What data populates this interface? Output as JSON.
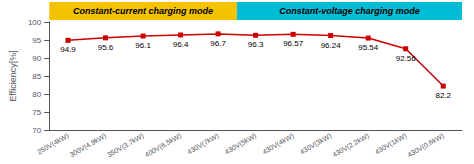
{
  "chart_data": {
    "type": "line",
    "categories": [
      "250V(4kW)",
      "300V(4.9kW)",
      "350V(3.7kW)",
      "400V(6.5kW)",
      "430V(7kW)",
      "430V(5kW)",
      "430V(4kW)",
      "430V(3kW)",
      "430V(2.2kW)",
      "430V(1kW)",
      "430V(0.6kW)"
    ],
    "values": [
      94.9,
      95.6,
      96.1,
      96.4,
      96.7,
      96.3,
      96.57,
      96.24,
      95.54,
      92.56,
      82.2
    ],
    "color": "#cc0000",
    "marker": "square",
    "ylabel": "Efficiency[%]",
    "ylim": [
      70,
      100
    ],
    "yticks": [
      70,
      75,
      80,
      85,
      90,
      95,
      100
    ],
    "data_labels": true,
    "grid": false,
    "annotations": [
      {
        "text": "Constant-current charging mode",
        "color": "#f5c200",
        "from": "250V(4kW)",
        "to": "430V(7kW)"
      },
      {
        "text": "Constant-voltage charging mode",
        "color": "#00bcd4",
        "from": "430V(5kW)",
        "to": "430V(0.6kW)"
      }
    ]
  }
}
